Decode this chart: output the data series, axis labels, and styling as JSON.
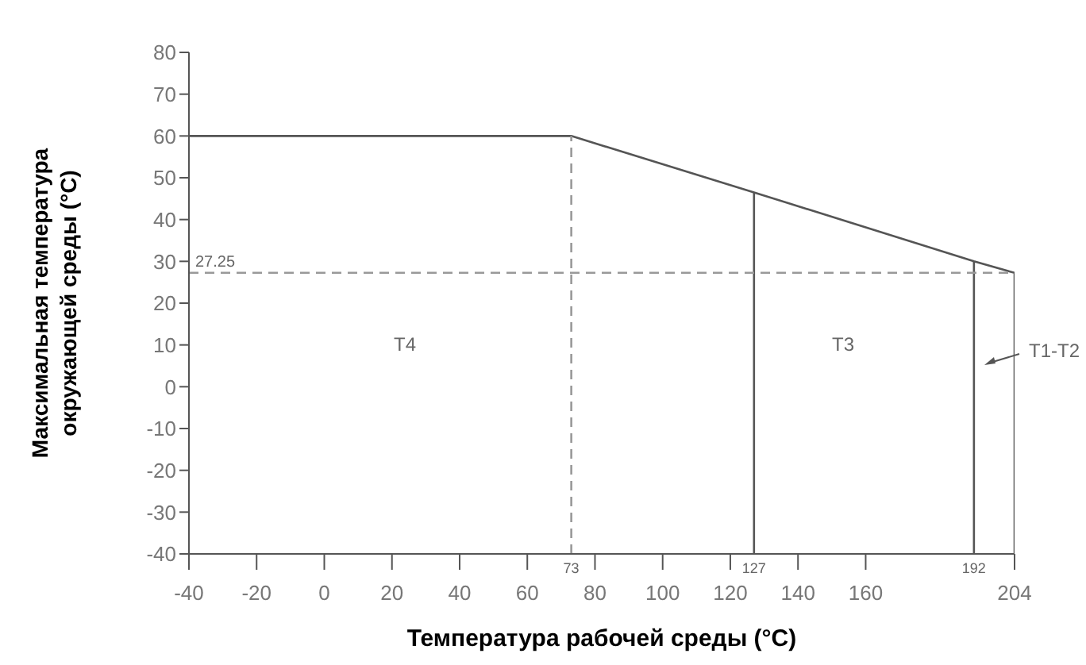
{
  "chart_data": {
    "type": "line",
    "xlabel": "Температура рабочей среды (°C)",
    "ylabel": "Максимальная температура\nокружающей среды (°C)",
    "xlim": [
      -40,
      204
    ],
    "xticks": [
      -40,
      -20,
      0,
      20,
      40,
      60,
      80,
      100,
      120,
      140,
      160,
      204
    ],
    "ylim": [
      -40,
      80
    ],
    "yticks": [
      -40,
      -30,
      -20,
      -10,
      0,
      10,
      20,
      30,
      40,
      50,
      60,
      70,
      80
    ],
    "grid": false,
    "marker": "none",
    "series": [
      {
        "color": "#555555",
        "x": [
          -40,
          73,
          127,
          192,
          204,
          204
        ],
        "values": [
          60,
          60,
          46.5,
          30,
          27.25,
          -40
        ]
      },
      {
        "color": "#555555",
        "x": [
          127,
          127
        ],
        "values": [
          -40,
          46.5
        ]
      },
      {
        "color": "#555555",
        "x": [
          192,
          192
        ],
        "values": [
          -40,
          30
        ]
      },
      {
        "color": "#999999",
        "line_style": "dashed",
        "x": [
          73,
          73
        ],
        "values": [
          -40,
          60
        ]
      },
      {
        "color": "#999999",
        "line_style": "dashed",
        "x": [
          -40,
          204
        ],
        "values": [
          27.25,
          27.25
        ]
      }
    ],
    "annotations": [
      {
        "text": "27.25",
        "x": -40,
        "y": 27.25
      },
      "T4",
      "T3",
      "T1-T2",
      {
        "text": "73",
        "x": 73,
        "y": -40
      },
      {
        "text": "127",
        "x": 127,
        "y": -40
      },
      {
        "text": "192",
        "x": 192,
        "y": -40
      }
    ]
  }
}
